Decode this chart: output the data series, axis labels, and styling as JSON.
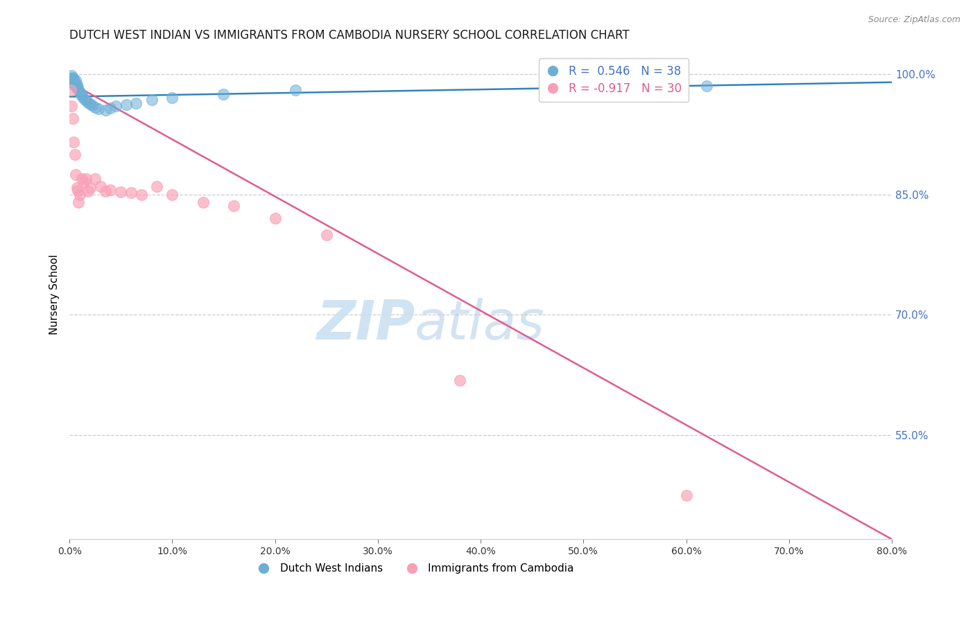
{
  "title": "DUTCH WEST INDIAN VS IMMIGRANTS FROM CAMBODIA NURSERY SCHOOL CORRELATION CHART",
  "source": "Source: ZipAtlas.com",
  "ylabel": "Nursery School",
  "right_yticks": [
    1.0,
    0.85,
    0.7,
    0.55
  ],
  "right_yticklabels": [
    "100.0%",
    "85.0%",
    "70.0%",
    "55.0%"
  ],
  "xmin": 0.0,
  "xmax": 0.8,
  "ymin": 0.42,
  "ymax": 1.03,
  "blue_color": "#6baed6",
  "pink_color": "#fa9fb5",
  "blue_line_color": "#3182bd",
  "pink_line_color": "#e05c8a",
  "legend_R_blue": "R =  0.546",
  "legend_N_blue": "N = 38",
  "legend_R_pink": "R = -0.917",
  "legend_N_pink": "N = 30",
  "legend_label_blue": "Dutch West Indians",
  "legend_label_pink": "Immigrants from Cambodia",
  "watermark_zip": "ZIP",
  "watermark_atlas": "atlas",
  "blue_x": [
    0.001,
    0.002,
    0.002,
    0.003,
    0.003,
    0.003,
    0.004,
    0.004,
    0.004,
    0.005,
    0.005,
    0.006,
    0.006,
    0.007,
    0.007,
    0.008,
    0.009,
    0.01,
    0.011,
    0.012,
    0.013,
    0.015,
    0.016,
    0.018,
    0.02,
    0.022,
    0.025,
    0.028,
    0.035,
    0.04,
    0.045,
    0.055,
    0.065,
    0.08,
    0.1,
    0.15,
    0.22,
    0.62
  ],
  "blue_y": [
    0.995,
    0.998,
    0.992,
    0.99,
    0.993,
    0.996,
    0.988,
    0.991,
    0.994,
    0.985,
    0.989,
    0.986,
    0.992,
    0.983,
    0.987,
    0.984,
    0.98,
    0.978,
    0.976,
    0.974,
    0.972,
    0.969,
    0.967,
    0.965,
    0.963,
    0.961,
    0.959,
    0.957,
    0.955,
    0.958,
    0.96,
    0.962,
    0.964,
    0.968,
    0.971,
    0.975,
    0.98,
    0.985
  ],
  "pink_x": [
    0.001,
    0.002,
    0.003,
    0.004,
    0.005,
    0.006,
    0.007,
    0.008,
    0.009,
    0.01,
    0.012,
    0.014,
    0.016,
    0.018,
    0.02,
    0.025,
    0.03,
    0.035,
    0.04,
    0.05,
    0.06,
    0.07,
    0.085,
    0.1,
    0.13,
    0.16,
    0.2,
    0.25,
    0.38,
    0.6
  ],
  "pink_y": [
    0.98,
    0.96,
    0.945,
    0.915,
    0.9,
    0.875,
    0.858,
    0.855,
    0.84,
    0.85,
    0.87,
    0.865,
    0.87,
    0.854,
    0.858,
    0.87,
    0.86,
    0.854,
    0.856,
    0.853,
    0.852,
    0.85,
    0.86,
    0.85,
    0.84,
    0.836,
    0.82,
    0.8,
    0.618,
    0.475
  ],
  "blue_line_x": [
    0.0,
    0.8
  ],
  "blue_line_y": [
    0.972,
    0.99
  ],
  "pink_line_x": [
    0.0,
    0.8
  ],
  "pink_line_y": [
    0.99,
    0.42
  ]
}
